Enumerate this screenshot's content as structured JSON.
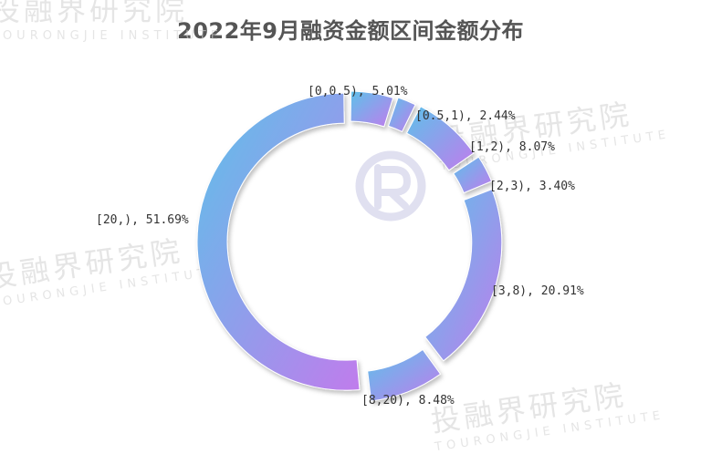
{
  "title": "2022年9月融资金额区间金额分布",
  "watermark": {
    "cn": "投融界研究院",
    "en": "TOURONGJIE INSTITUTE"
  },
  "colors": {
    "gradient_start": "#5dc1ea",
    "gradient_end": "#c07cec",
    "title": "#555555"
  },
  "chart_data": {
    "type": "pie",
    "style": "donut",
    "title": "2022年9月融资金额区间金额分布",
    "slices": [
      {
        "category": "[0,0.5)",
        "value": 5.01,
        "label": "[0,0.5), 5.01%"
      },
      {
        "category": "[0.5,1)",
        "value": 2.44,
        "label": "[0.5,1), 2.44%"
      },
      {
        "category": "[1,2)",
        "value": 8.07,
        "label": "[1,2), 8.07%"
      },
      {
        "category": "[2,3)",
        "value": 3.4,
        "label": "[2,3), 3.40%"
      },
      {
        "category": "[3,8)",
        "value": 20.91,
        "label": "[3,8), 20.91%"
      },
      {
        "category": "[8,20)",
        "value": 8.48,
        "label": "[8,20), 8.48%"
      },
      {
        "category": "[20,)",
        "value": 51.69,
        "label": "[20,), 51.69%"
      }
    ]
  }
}
